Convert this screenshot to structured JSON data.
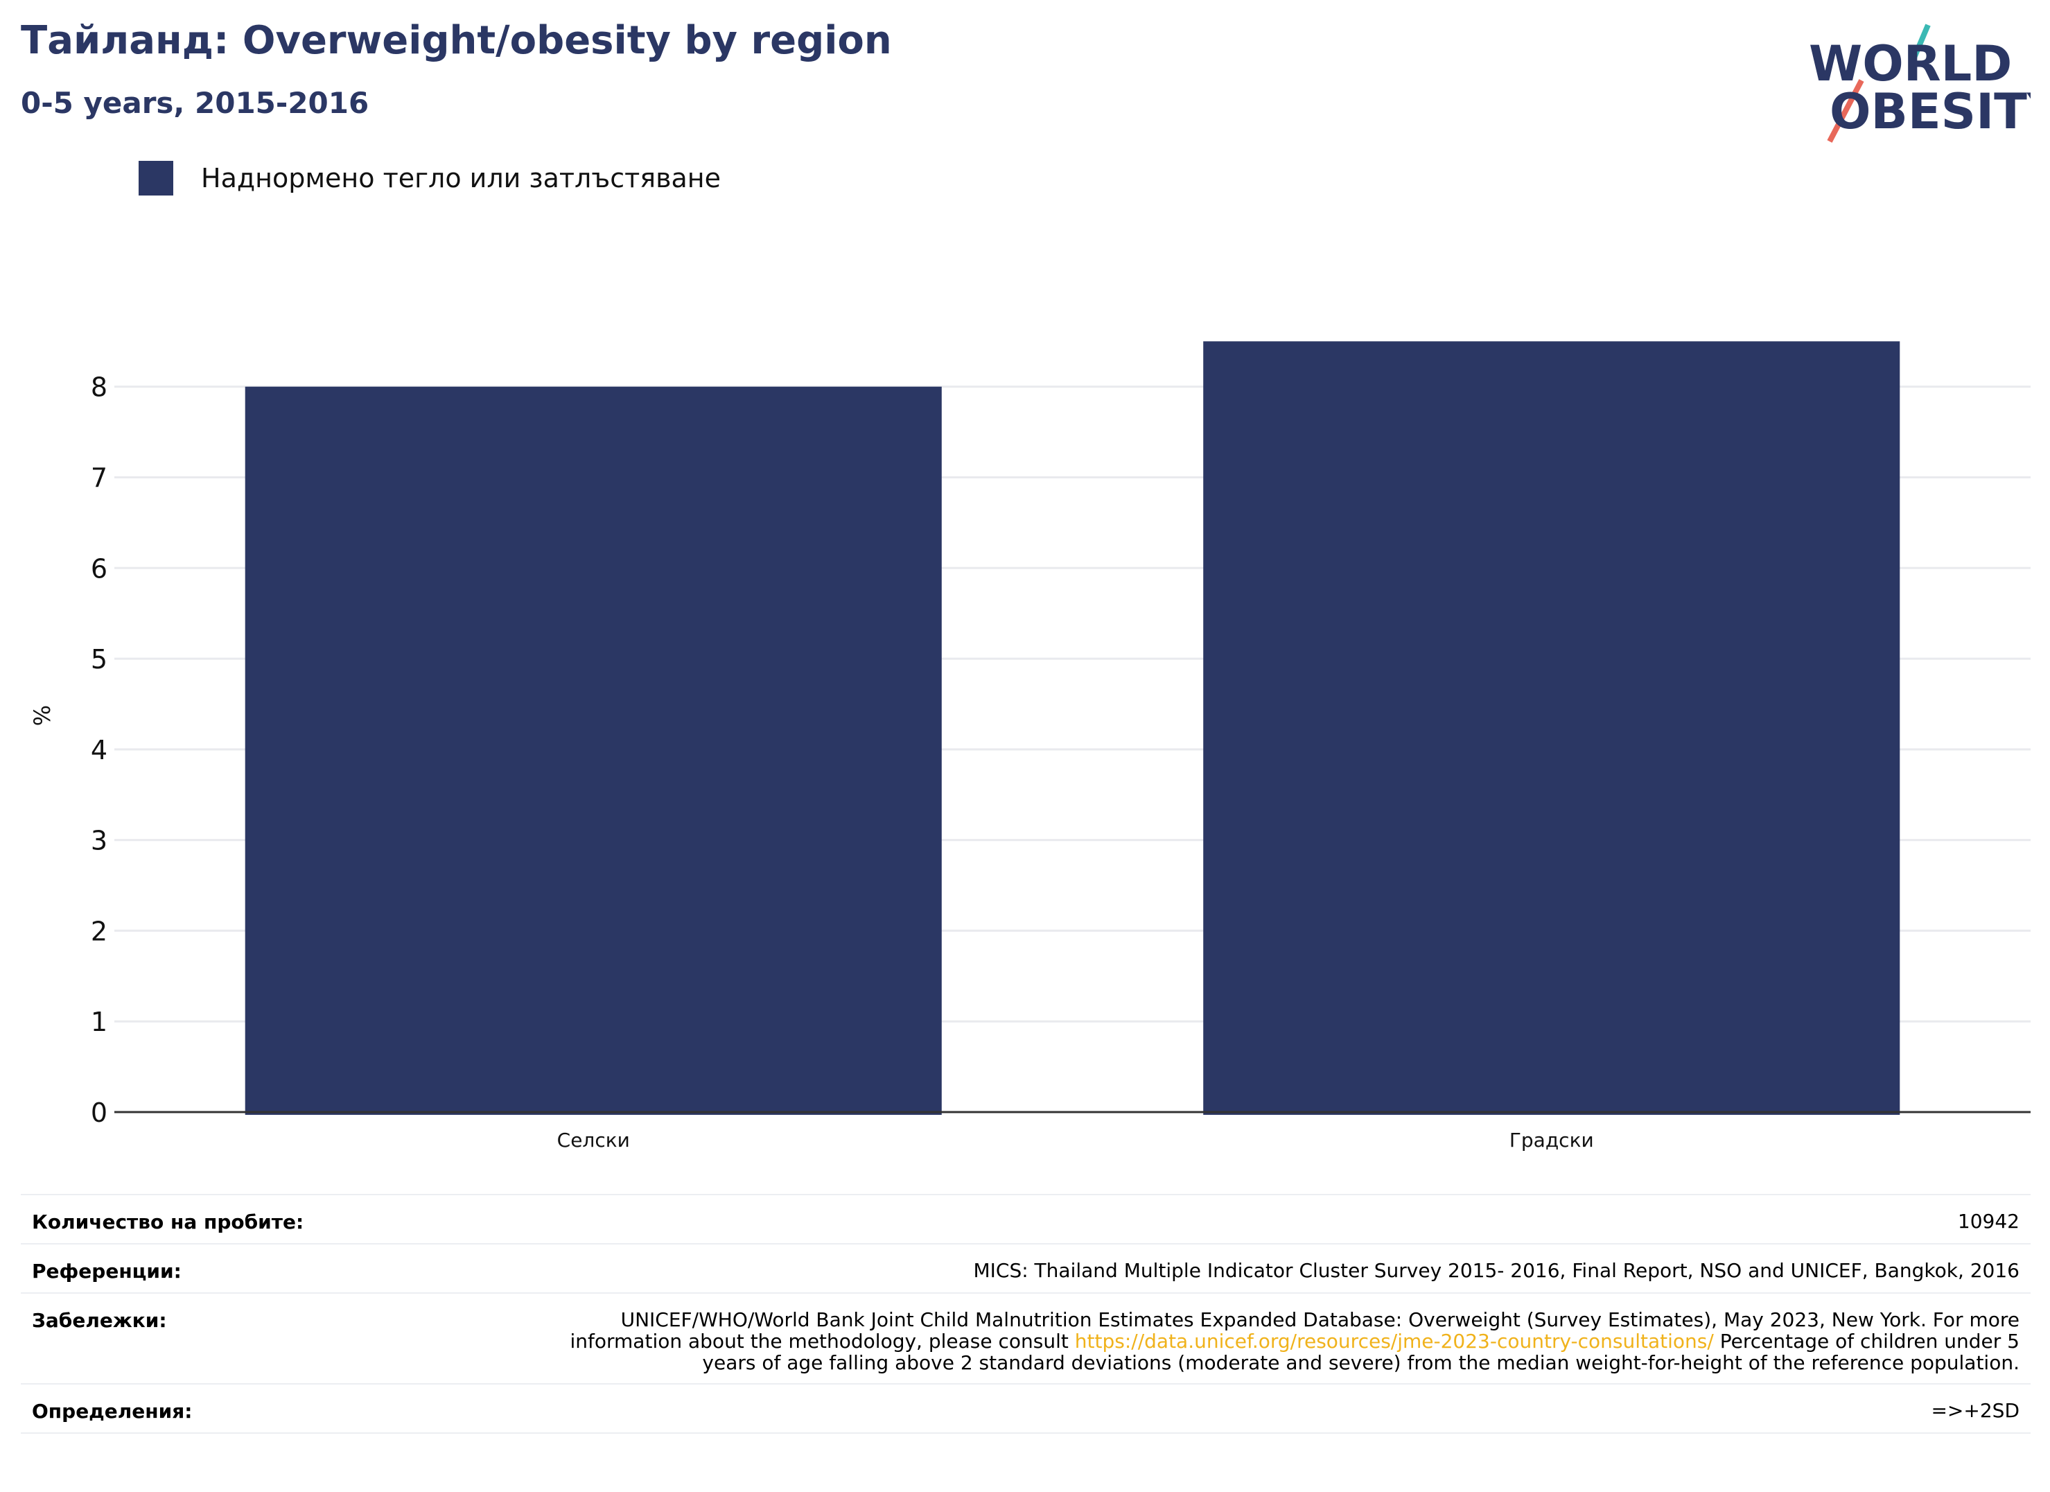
{
  "header": {
    "title": "Тайланд: Overweight/obesity by region",
    "subtitle": "0-5 years, 2015-2016"
  },
  "logo": {
    "line1": "WORLD",
    "line2": "OBESITY"
  },
  "colors": {
    "bar": "#2b3764",
    "title": "#2b3764",
    "link": "#f0b21b",
    "logo_teal": "#3bb9b4",
    "logo_red": "#e8685a"
  },
  "chart_data": {
    "type": "bar",
    "title": "Тайланд: Overweight/obesity by region",
    "subtitle": "0-5 years, 2015-2016",
    "categories": [
      "Селски",
      "Градски"
    ],
    "series": [
      {
        "name": "Наднормено тегло или затлъстяване",
        "values": [
          8.0,
          8.5
        ]
      }
    ],
    "xlabel": "",
    "ylabel": "%",
    "ylim": [
      0,
      8.9
    ],
    "yticks": [
      0,
      1,
      2,
      3,
      4,
      5,
      6,
      7,
      8
    ],
    "grid": true,
    "legend": "top-left"
  },
  "meta": {
    "sample_size_label": "Количество на пробите:",
    "sample_size_value": "10942",
    "references_label": "Референции:",
    "references_value": "MICS: Thailand Multiple Indicator Cluster Survey 2015- 2016, Final Report, NSO and UNICEF, Bangkok, 2016",
    "notes_label": "Забележки:",
    "notes_before": "UNICEF/WHO/World Bank Joint Child Malnutrition Estimates Expanded Database: Overweight (Survey Estimates), May 2023, New York. For more information about the methodology, please consult ",
    "notes_link": "https://data.unicef.org/resources/jme-2023-country-consultations/",
    "notes_after": " Percentage of children under 5 years of age falling above 2 standard deviations (moderate and severe) from the median weight-for-height of the reference population.",
    "definitions_label": "Определения:",
    "definitions_value": "=>+2SD"
  }
}
